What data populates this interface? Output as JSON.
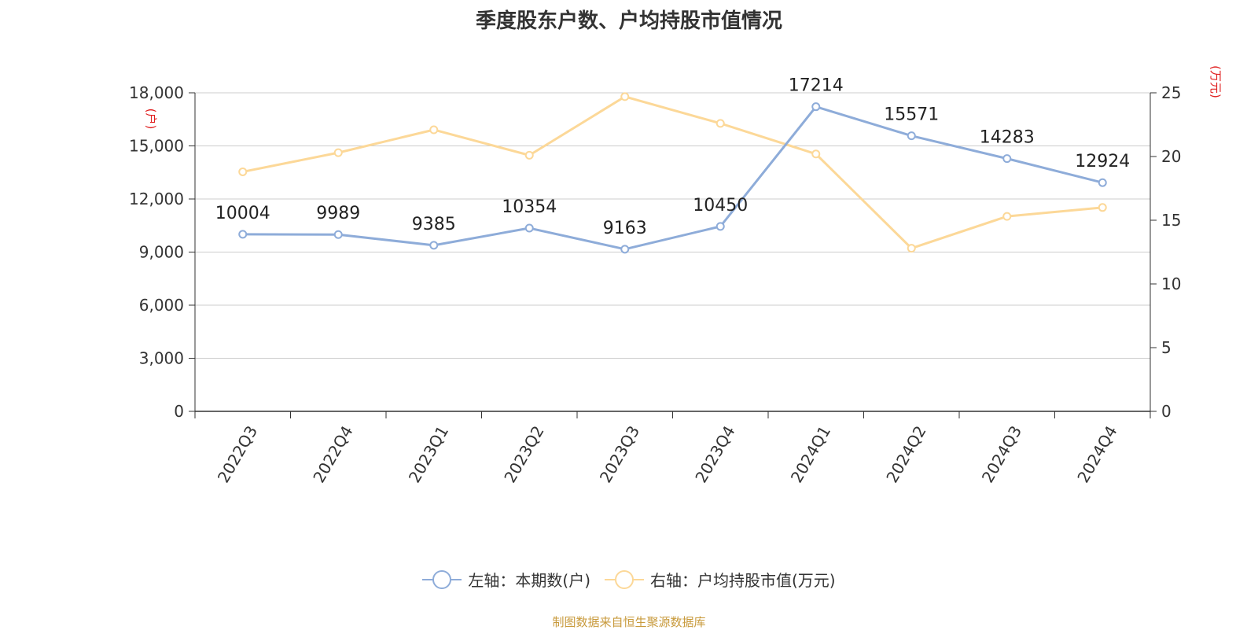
{
  "title": "季度股东户数、户均持股市值情况",
  "source": "制图数据来自恒生聚源数据库",
  "colors": {
    "series1": "#8eacd9",
    "series2": "#fcd898",
    "axis_unit": "#e02020",
    "grid": "#cccccc",
    "axis": "#333333"
  },
  "legend": {
    "series1_label": "左轴：本期数(户)",
    "series2_label": "右轴：户均持股市值(万元)"
  },
  "chart_data": {
    "type": "line",
    "title": "季度股东户数、户均持股市值情况",
    "categories": [
      "2022Q3",
      "2022Q4",
      "2023Q1",
      "2023Q2",
      "2023Q3",
      "2023Q4",
      "2024Q1",
      "2024Q2",
      "2024Q3",
      "2024Q4"
    ],
    "y_left": {
      "unit": "(户)",
      "ylim": [
        0,
        18000
      ],
      "ticks": [
        "0",
        "3,000",
        "6,000",
        "9,000",
        "12,000",
        "15,000",
        "18,000"
      ],
      "tick_values": [
        0,
        3000,
        6000,
        9000,
        12000,
        15000,
        18000
      ]
    },
    "y_right": {
      "unit": "(万元)",
      "ylim": [
        0,
        25
      ],
      "ticks": [
        "0",
        "5",
        "10",
        "15",
        "20",
        "25"
      ],
      "tick_values": [
        0,
        5,
        10,
        15,
        20,
        25
      ]
    },
    "grid": true,
    "legend_position": "bottom",
    "series": [
      {
        "name": "左轴：本期数(户)",
        "axis": "left",
        "values": [
          10004,
          9989,
          9385,
          10354,
          9163,
          10450,
          17214,
          15571,
          14283,
          12924
        ],
        "labels": [
          "10004",
          "9989",
          "9385",
          "10354",
          "9163",
          "10450",
          "17214",
          "15571",
          "14283",
          "12924"
        ]
      },
      {
        "name": "右轴：户均持股市值(万元)",
        "axis": "right",
        "values": [
          18.8,
          20.3,
          22.1,
          20.1,
          24.7,
          22.6,
          20.2,
          12.8,
          15.3,
          16.0
        ]
      }
    ]
  }
}
